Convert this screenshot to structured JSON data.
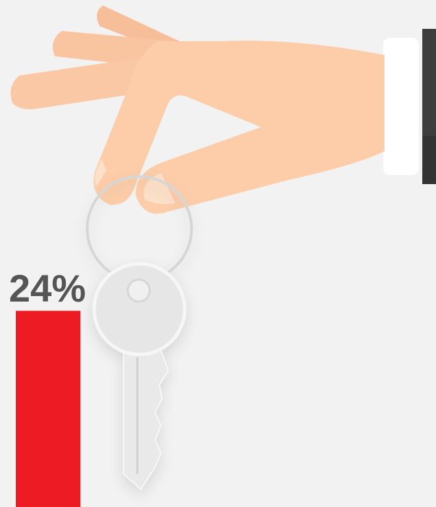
{
  "chart_data": {
    "type": "bar",
    "categories": [
      null
    ],
    "values": [
      24
    ],
    "value_labels": [
      "24%"
    ],
    "color": "#ed1c24"
  }
}
